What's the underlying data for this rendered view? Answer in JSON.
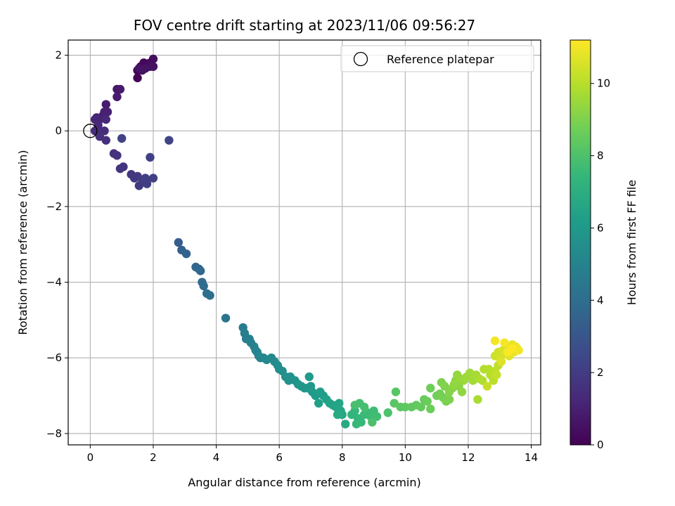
{
  "chart_data": {
    "type": "scatter",
    "title": "FOV centre drift starting at 2023/11/06 09:56:27",
    "xlabel": "Angular distance from reference (arcmin)",
    "ylabel": "Rotation from reference (arcmin)",
    "xlim": [
      -0.7,
      14.3
    ],
    "ylim": [
      -8.3,
      2.4
    ],
    "xticks": [
      0,
      2,
      4,
      6,
      8,
      10,
      12,
      14
    ],
    "yticks": [
      -8,
      -6,
      -4,
      -2,
      0,
      2
    ],
    "grid": true,
    "legend": {
      "position": "top-right",
      "entries": [
        "Reference platepar"
      ]
    },
    "reference_point": {
      "x": 0,
      "y": 0,
      "label": "Reference platepar"
    },
    "colorbar": {
      "label": "Hours from first FF file",
      "colormap": "viridis",
      "range": [
        0,
        11.2
      ],
      "ticks": [
        0,
        2,
        4,
        6,
        8,
        10
      ]
    },
    "colormap_stops": [
      "#440154",
      "#482878",
      "#3e4989",
      "#31688e",
      "#26828e",
      "#1f9e89",
      "#35b779",
      "#6ece58",
      "#b5de2b",
      "#fde725"
    ],
    "points": [
      [
        1.5,
        1.4,
        0.05
      ],
      [
        1.5,
        1.6,
        0.1
      ],
      [
        1.6,
        1.7,
        0.15
      ],
      [
        1.7,
        1.8,
        0.2
      ],
      [
        1.8,
        1.75,
        0.25
      ],
      [
        1.9,
        1.8,
        0.3
      ],
      [
        2.0,
        1.9,
        0.35
      ],
      [
        1.9,
        1.7,
        0.4
      ],
      [
        1.65,
        1.6,
        0.45
      ],
      [
        2.0,
        1.7,
        0.5
      ],
      [
        1.75,
        1.65,
        0.55
      ],
      [
        1.55,
        1.65,
        0.6
      ],
      [
        0.85,
        1.1,
        0.7
      ],
      [
        0.95,
        1.1,
        0.75
      ],
      [
        0.85,
        0.9,
        0.8
      ],
      [
        0.5,
        0.7,
        0.9
      ],
      [
        0.45,
        0.5,
        0.95
      ],
      [
        0.4,
        0.4,
        1.0
      ],
      [
        0.55,
        0.5,
        1.05
      ],
      [
        0.3,
        0.3,
        1.1
      ],
      [
        0.2,
        0.35,
        1.15
      ],
      [
        0.15,
        0.3,
        1.2
      ],
      [
        0.25,
        0.15,
        1.25
      ],
      [
        0.5,
        0.3,
        1.3
      ],
      [
        0.3,
        0.0,
        1.35
      ],
      [
        0.15,
        0.0,
        1.4
      ],
      [
        0.45,
        0.0,
        1.45
      ],
      [
        0.3,
        -0.15,
        1.5
      ],
      [
        0.5,
        -0.25,
        1.55
      ],
      [
        0.75,
        -0.6,
        1.6
      ],
      [
        0.85,
        -0.65,
        1.65
      ],
      [
        1.05,
        -0.95,
        1.7
      ],
      [
        0.95,
        -1.0,
        1.75
      ],
      [
        1.3,
        -1.15,
        1.8
      ],
      [
        1.4,
        -1.25,
        1.85
      ],
      [
        1.5,
        -1.2,
        1.9
      ],
      [
        1.55,
        -1.45,
        1.95
      ],
      [
        1.65,
        -1.3,
        2.0
      ],
      [
        1.8,
        -1.4,
        2.05
      ],
      [
        1.75,
        -1.25,
        2.1
      ],
      [
        2.0,
        -1.25,
        2.15
      ],
      [
        1.9,
        -0.7,
        2.2
      ],
      [
        1.0,
        -0.2,
        2.25
      ],
      [
        2.5,
        -0.25,
        2.3
      ],
      [
        2.8,
        -2.95,
        3.3
      ],
      [
        2.9,
        -3.15,
        3.4
      ],
      [
        3.05,
        -3.25,
        3.5
      ],
      [
        3.35,
        -3.6,
        3.65
      ],
      [
        3.45,
        -3.65,
        3.7
      ],
      [
        3.5,
        -3.7,
        3.75
      ],
      [
        3.55,
        -4.0,
        3.85
      ],
      [
        3.6,
        -4.1,
        3.9
      ],
      [
        3.7,
        -4.3,
        4.0
      ],
      [
        3.8,
        -4.35,
        4.05
      ],
      [
        4.3,
        -4.95,
        4.3
      ],
      [
        4.85,
        -5.2,
        4.7
      ],
      [
        4.9,
        -5.35,
        4.75
      ],
      [
        4.95,
        -5.5,
        4.8
      ],
      [
        5.05,
        -5.5,
        4.85
      ],
      [
        5.1,
        -5.6,
        4.9
      ],
      [
        5.2,
        -5.7,
        4.95
      ],
      [
        5.25,
        -5.8,
        5.0
      ],
      [
        5.3,
        -5.85,
        5.05
      ],
      [
        5.35,
        -5.95,
        5.1
      ],
      [
        5.4,
        -6.0,
        5.15
      ],
      [
        5.5,
        -6.0,
        5.2
      ],
      [
        5.6,
        -6.05,
        5.25
      ],
      [
        5.75,
        -6.0,
        5.3
      ],
      [
        5.85,
        -6.1,
        5.35
      ],
      [
        5.95,
        -6.2,
        5.4
      ],
      [
        6.0,
        -6.3,
        5.45
      ],
      [
        6.1,
        -6.35,
        5.5
      ],
      [
        6.2,
        -6.5,
        5.6
      ],
      [
        6.3,
        -6.6,
        5.65
      ],
      [
        6.35,
        -6.5,
        5.7
      ],
      [
        6.5,
        -6.6,
        5.75
      ],
      [
        6.6,
        -6.7,
        5.8
      ],
      [
        6.7,
        -6.75,
        5.85
      ],
      [
        6.8,
        -6.8,
        5.9
      ],
      [
        6.9,
        -6.8,
        5.95
      ],
      [
        7.0,
        -6.75,
        6.0
      ],
      [
        6.95,
        -6.5,
        6.05
      ],
      [
        7.05,
        -6.9,
        6.1
      ],
      [
        7.15,
        -7.0,
        6.15
      ],
      [
        7.3,
        -6.9,
        6.2
      ],
      [
        7.4,
        -7.0,
        6.25
      ],
      [
        7.25,
        -7.2,
        6.3
      ],
      [
        7.5,
        -7.1,
        6.35
      ],
      [
        7.6,
        -7.2,
        6.4
      ],
      [
        7.7,
        -7.25,
        6.45
      ],
      [
        7.8,
        -7.3,
        6.5
      ],
      [
        7.9,
        -7.2,
        6.55
      ],
      [
        7.95,
        -7.4,
        6.6
      ],
      [
        8.0,
        -7.5,
        6.7
      ],
      [
        8.1,
        -7.75,
        6.75
      ],
      [
        7.85,
        -7.5,
        6.8
      ],
      [
        8.3,
        -7.5,
        7.3
      ],
      [
        8.4,
        -7.4,
        7.35
      ],
      [
        8.5,
        -7.6,
        7.4
      ],
      [
        8.45,
        -7.75,
        7.45
      ],
      [
        8.6,
        -7.7,
        7.5
      ],
      [
        8.7,
        -7.5,
        7.55
      ],
      [
        8.8,
        -7.45,
        7.6
      ],
      [
        8.9,
        -7.55,
        7.65
      ],
      [
        9.0,
        -7.4,
        7.7
      ],
      [
        9.1,
        -7.55,
        7.75
      ],
      [
        8.55,
        -7.2,
        7.8
      ],
      [
        8.7,
        -7.3,
        7.85
      ],
      [
        8.4,
        -7.25,
        7.9
      ],
      [
        8.95,
        -7.7,
        7.95
      ],
      [
        9.45,
        -7.45,
        8.0
      ],
      [
        9.7,
        -6.9,
        8.2
      ],
      [
        9.65,
        -7.2,
        8.25
      ],
      [
        9.85,
        -7.3,
        8.3
      ],
      [
        10.0,
        -7.3,
        8.35
      ],
      [
        10.2,
        -7.3,
        8.4
      ],
      [
        10.35,
        -7.25,
        8.45
      ],
      [
        10.5,
        -7.3,
        8.5
      ],
      [
        10.6,
        -7.1,
        8.55
      ],
      [
        10.7,
        -7.15,
        8.6
      ],
      [
        10.8,
        -7.35,
        8.65
      ],
      [
        10.8,
        -6.8,
        8.7
      ],
      [
        11.0,
        -7.0,
        8.75
      ],
      [
        11.1,
        -6.95,
        8.8
      ],
      [
        11.2,
        -7.05,
        8.85
      ],
      [
        11.3,
        -7.15,
        8.9
      ],
      [
        11.4,
        -7.1,
        8.95
      ],
      [
        11.15,
        -6.65,
        9.0
      ],
      [
        11.25,
        -6.75,
        9.05
      ],
      [
        11.4,
        -6.9,
        9.1
      ],
      [
        11.5,
        -6.8,
        9.15
      ],
      [
        11.6,
        -6.6,
        9.2
      ],
      [
        11.7,
        -6.75,
        9.25
      ],
      [
        11.8,
        -6.9,
        9.3
      ],
      [
        11.55,
        -6.7,
        9.35
      ],
      [
        11.65,
        -6.45,
        9.4
      ],
      [
        11.75,
        -6.55,
        9.45
      ],
      [
        11.85,
        -6.6,
        9.5
      ],
      [
        11.95,
        -6.5,
        9.55
      ],
      [
        12.05,
        -6.4,
        9.6
      ],
      [
        12.15,
        -6.6,
        9.65
      ],
      [
        12.25,
        -6.45,
        9.7
      ],
      [
        12.3,
        -7.1,
        9.75
      ],
      [
        12.35,
        -6.55,
        9.8
      ],
      [
        12.45,
        -6.6,
        9.85
      ],
      [
        12.5,
        -6.3,
        9.9
      ],
      [
        12.65,
        -6.3,
        9.95
      ],
      [
        12.7,
        -6.45,
        10.0
      ],
      [
        12.8,
        -6.6,
        10.05
      ],
      [
        12.85,
        -6.35,
        10.1
      ],
      [
        12.95,
        -6.2,
        10.15
      ],
      [
        12.9,
        -6.45,
        10.2
      ],
      [
        12.6,
        -6.75,
        10.25
      ],
      [
        12.85,
        -5.95,
        10.35
      ],
      [
        12.95,
        -5.85,
        10.4
      ],
      [
        13.0,
        -6.0,
        10.45
      ],
      [
        13.1,
        -5.8,
        10.5
      ],
      [
        13.2,
        -5.9,
        10.55
      ],
      [
        13.25,
        -5.7,
        10.6
      ],
      [
        13.05,
        -6.1,
        10.65
      ],
      [
        13.3,
        -5.95,
        10.7
      ],
      [
        13.35,
        -5.75,
        10.75
      ],
      [
        13.4,
        -5.65,
        10.8
      ],
      [
        13.45,
        -5.85,
        10.85
      ],
      [
        13.5,
        -5.7,
        10.9
      ],
      [
        13.55,
        -5.75,
        10.95
      ],
      [
        13.6,
        -5.8,
        11.0
      ],
      [
        12.85,
        -5.55,
        11.05
      ],
      [
        13.15,
        -5.6,
        11.1
      ],
      [
        13.25,
        -5.85,
        11.15
      ],
      [
        13.4,
        -5.75,
        11.2
      ]
    ]
  }
}
